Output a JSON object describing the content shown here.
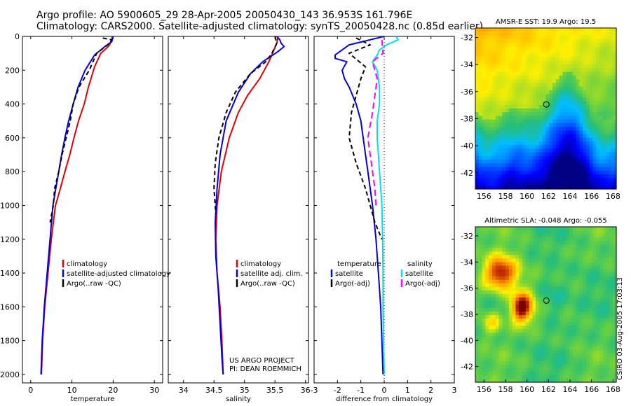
{
  "header": {
    "line1": "Argo profile: AO 5900605_29 28-Apr-2005 20050430_143 36.953S 161.796E",
    "line2": "Climatology: CARS2000. Satellite-adjusted climatology: synTS_20050428.nc (0.85d earlier)"
  },
  "side_label": "CSIRO 03-Aug-2005 17:03:13",
  "colors": {
    "climatology": "#e00000",
    "satellite": "#0000e0",
    "argo": "#000000",
    "salinity_sat": "#00e0f0",
    "salinity_argo": "#ff00ff"
  },
  "chart_data": [
    {
      "id": "temperature",
      "type": "line",
      "xlabel": "temperature",
      "ylabel": "",
      "xlim": [
        -2,
        32
      ],
      "ylim": [
        2050,
        0
      ],
      "xticks": [
        0,
        10,
        20,
        30
      ],
      "xtick_labels": [
        "0",
        "10",
        "20",
        "30"
      ],
      "yticks": [
        0,
        200,
        400,
        600,
        800,
        1000,
        1200,
        1400,
        1600,
        1800,
        2000
      ],
      "ytick_labels": [
        "0",
        "200",
        "400",
        "600",
        "800",
        "1000",
        "1200",
        "1400",
        "1600",
        "1800",
        "2000"
      ],
      "series": [
        {
          "name": "climatology",
          "color": "#e00000",
          "dash": "",
          "points": [
            [
              19.8,
              0
            ],
            [
              19.6,
              30
            ],
            [
              18.8,
              60
            ],
            [
              17,
              100
            ],
            [
              15.5,
              180
            ],
            [
              14,
              300
            ],
            [
              13,
              400
            ],
            [
              11.6,
              500
            ],
            [
              10.5,
              600
            ],
            [
              9.5,
              700
            ],
            [
              8.3,
              800
            ],
            [
              7.2,
              900
            ],
            [
              6,
              1000
            ],
            [
              5,
              1200
            ],
            [
              4.2,
              1400
            ],
            [
              3.4,
              1600
            ],
            [
              2.9,
              1800
            ],
            [
              2.6,
              2000
            ]
          ]
        },
        {
          "name": "satellite-adjusted climatology",
          "color": "#0000e0",
          "dash": "",
          "points": [
            [
              19.9,
              0
            ],
            [
              19.7,
              30
            ],
            [
              18,
              60
            ],
            [
              15.5,
              110
            ],
            [
              13.2,
              200
            ],
            [
              11.5,
              300
            ],
            [
              10.3,
              400
            ],
            [
              9.2,
              500
            ],
            [
              8.3,
              600
            ],
            [
              7.5,
              700
            ],
            [
              6.8,
              800
            ],
            [
              6.1,
              900
            ],
            [
              5.4,
              1000
            ],
            [
              4.7,
              1200
            ],
            [
              4,
              1400
            ],
            [
              3.3,
              1600
            ],
            [
              2.8,
              1800
            ],
            [
              2.5,
              2000
            ]
          ]
        },
        {
          "name": "Argo(..raw -QC)",
          "color": "#000000",
          "dash": "6,4",
          "points": [
            [
              17.5,
              10
            ],
            [
              19.6,
              20
            ],
            [
              19.2,
              40
            ],
            [
              16,
              100
            ],
            [
              14.2,
              200
            ],
            [
              11.7,
              300
            ],
            [
              10.3,
              400
            ],
            [
              9.6,
              500
            ],
            [
              8.6,
              600
            ],
            [
              7.6,
              700
            ],
            [
              6.8,
              800
            ],
            [
              5.8,
              900
            ],
            [
              5.5,
              1000
            ],
            [
              4.7,
              1100
            ]
          ]
        }
      ],
      "legend": [
        {
          "label": "climatology",
          "color": "#e00000"
        },
        {
          "label": "satellite-adjusted climatology",
          "color": "#0000e0"
        },
        {
          "label": "Argo(..raw -QC)",
          "color": "#000000"
        }
      ]
    },
    {
      "id": "salinity",
      "type": "line",
      "xlabel": "salinity",
      "ylabel": "",
      "xlim": [
        33.75,
        36.05
      ],
      "ylim": [
        2050,
        0
      ],
      "xticks": [
        34,
        34.5,
        35,
        35.5,
        36
      ],
      "xtick_labels": [
        "34",
        "34.5",
        "35",
        "35.5",
        "36"
      ],
      "yticks": [],
      "ytick_labels": [],
      "series": [
        {
          "name": "climatology",
          "color": "#e00000",
          "dash": "",
          "points": [
            [
              35.55,
              0
            ],
            [
              35.53,
              40
            ],
            [
              35.4,
              150
            ],
            [
              35.25,
              250
            ],
            [
              35.05,
              350
            ],
            [
              34.9,
              450
            ],
            [
              34.75,
              600
            ],
            [
              34.62,
              800
            ],
            [
              34.55,
              1000
            ],
            [
              34.53,
              1200
            ],
            [
              34.55,
              1400
            ],
            [
              34.6,
              1600
            ],
            [
              34.63,
              1800
            ],
            [
              34.65,
              2000
            ]
          ]
        },
        {
          "name": "satellite adj. clim.",
          "color": "#0000e0",
          "dash": "",
          "points": [
            [
              35.53,
              0
            ],
            [
              35.58,
              20
            ],
            [
              35.6,
              40
            ],
            [
              35.65,
              60
            ],
            [
              35.55,
              90
            ],
            [
              35.3,
              150
            ],
            [
              35.1,
              220
            ],
            [
              34.9,
              330
            ],
            [
              34.7,
              500
            ],
            [
              34.6,
              700
            ],
            [
              34.55,
              900
            ],
            [
              34.52,
              1100
            ],
            [
              34.53,
              1300
            ],
            [
              34.57,
              1500
            ],
            [
              34.6,
              1700
            ],
            [
              34.63,
              1900
            ],
            [
              34.65,
              2000
            ]
          ]
        },
        {
          "name": "Argo(..raw -QC)",
          "color": "#000000",
          "dash": "6,4",
          "points": [
            [
              35.5,
              0
            ],
            [
              35.53,
              40
            ],
            [
              35.45,
              100
            ],
            [
              35.35,
              150
            ],
            [
              35.1,
              220
            ],
            [
              34.85,
              330
            ],
            [
              34.7,
              450
            ],
            [
              34.58,
              600
            ],
            [
              34.52,
              750
            ],
            [
              34.5,
              900
            ],
            [
              34.53,
              1050
            ]
          ]
        }
      ],
      "legend": [
        {
          "label": "climatology",
          "color": "#e00000"
        },
        {
          "label": "satellite adj. clim.",
          "color": "#0000e0"
        },
        {
          "label": "Argo(..raw -QC)",
          "color": "#000000"
        }
      ],
      "annotation": [
        "US ARGO PROJECT",
        "PI: DEAN ROEMMICH"
      ]
    },
    {
      "id": "difference",
      "type": "line",
      "xlabel": "difference from climatology",
      "ylabel": "",
      "xlim": [
        -3,
        3
      ],
      "ylim": [
        2050,
        0
      ],
      "xticks": [
        -3,
        -2,
        -1,
        0,
        1,
        2,
        3
      ],
      "xtick_labels": [
        "-3",
        "-2",
        "-1",
        "0",
        "1",
        "2",
        "3"
      ],
      "yticks": [],
      "ytick_labels": [],
      "zero_line": 0,
      "series": [
        {
          "name": "temperature satellite",
          "color": "#0000e0",
          "dash": "",
          "points": [
            [
              0,
              0
            ],
            [
              -0.6,
              20
            ],
            [
              -1.5,
              50
            ],
            [
              -1.8,
              80
            ],
            [
              -2.1,
              110
            ],
            [
              -2.1,
              130
            ],
            [
              -1.6,
              150
            ],
            [
              -1.8,
              200
            ],
            [
              -1.7,
              250
            ],
            [
              -1.5,
              300
            ],
            [
              -1.2,
              400
            ],
            [
              -1,
              500
            ],
            [
              -0.9,
              600
            ],
            [
              -0.8,
              700
            ],
            [
              -0.7,
              800
            ],
            [
              -0.6,
              900
            ],
            [
              -0.5,
              1000
            ],
            [
              -0.35,
              1200
            ],
            [
              -0.25,
              1400
            ],
            [
              -0.15,
              1600
            ],
            [
              -0.1,
              1800
            ],
            [
              -0.05,
              2000
            ]
          ]
        },
        {
          "name": "salinity satellite",
          "color": "#00e0f0",
          "dash": "",
          "points": [
            [
              0.5,
              0
            ],
            [
              0.6,
              20
            ],
            [
              0.1,
              50
            ],
            [
              -0.2,
              80
            ],
            [
              -0.3,
              110
            ],
            [
              -0.5,
              150
            ],
            [
              -0.3,
              200
            ],
            [
              -0.2,
              300
            ],
            [
              -0.2,
              400
            ],
            [
              -0.3,
              500
            ],
            [
              -0.3,
              600
            ],
            [
              -0.25,
              700
            ],
            [
              -0.2,
              800
            ],
            [
              -0.15,
              900
            ],
            [
              -0.1,
              1000
            ],
            [
              -0.07,
              1200
            ],
            [
              -0.05,
              1400
            ],
            [
              -0.05,
              1600
            ],
            [
              -0.03,
              1800
            ],
            [
              0,
              2000
            ]
          ]
        },
        {
          "name": "temperature Argo(-adj)",
          "color": "#000000",
          "dash": "6,4",
          "points": [
            [
              -1.2,
              10
            ],
            [
              -0.6,
              50
            ],
            [
              -1.5,
              100
            ],
            [
              -0.8,
              180
            ],
            [
              -1,
              250
            ],
            [
              -1.2,
              350
            ],
            [
              -1.4,
              450
            ],
            [
              -1.5,
              600
            ],
            [
              -1.2,
              750
            ],
            [
              -0.8,
              900
            ],
            [
              -0.4,
              1100
            ],
            [
              -0.1,
              1200
            ]
          ]
        },
        {
          "name": "salinity Argo(-adj)",
          "color": "#ff00ff",
          "dash": "9,5",
          "points": [
            [
              -0.1,
              20
            ],
            [
              -0.05,
              100
            ],
            [
              -0.5,
              150
            ],
            [
              -0.3,
              250
            ],
            [
              -0.4,
              350
            ],
            [
              -0.5,
              450
            ],
            [
              -0.7,
              600
            ],
            [
              -0.55,
              750
            ],
            [
              -0.4,
              900
            ],
            [
              -0.35,
              1000
            ]
          ]
        }
      ],
      "legend_left_title": "temperature",
      "legend_left": [
        {
          "label": "satellite",
          "color": "#0000e0"
        },
        {
          "label": "Argo(-adj)",
          "color": "#000000"
        }
      ],
      "legend_right_title": "salinity",
      "legend_right": [
        {
          "label": "satellite",
          "color": "#00e0f0"
        },
        {
          "label": "Argo(-adj)",
          "color": "#ff00ff"
        }
      ]
    },
    {
      "id": "sst_map",
      "type": "heatmap",
      "title": "AMSR-E SST: 19.9 Argo: 19.5",
      "xlim": [
        155.2,
        168.3
      ],
      "ylim": [
        -43.2,
        -31.3
      ],
      "xticks": [
        156,
        158,
        160,
        162,
        164,
        166,
        168
      ],
      "xtick_labels": [
        "156",
        "158",
        "160",
        "162",
        "164",
        "166",
        "168"
      ],
      "yticks": [
        -32,
        -34,
        -36,
        -38,
        -40,
        -42
      ],
      "ytick_labels": [
        "-32",
        "-34",
        "-36",
        "-38",
        "-40",
        "-42"
      ],
      "marker": [
        161.8,
        -36.95
      ]
    },
    {
      "id": "sla_map",
      "type": "heatmap",
      "title": "Altimetric SLA: -0.048 Argo: -0.055",
      "xlim": [
        155.2,
        168.3
      ],
      "ylim": [
        -43.2,
        -31.3
      ],
      "xticks": [
        156,
        158,
        160,
        162,
        164,
        166,
        168
      ],
      "xtick_labels": [
        "156",
        "158",
        "160",
        "162",
        "164",
        "166",
        "168"
      ],
      "yticks": [
        -32,
        -34,
        -36,
        -38,
        -40,
        -42
      ],
      "ytick_labels": [
        "-32",
        "-34",
        "-36",
        "-38",
        "-40",
        "-42"
      ],
      "marker": [
        161.8,
        -36.95
      ]
    }
  ]
}
